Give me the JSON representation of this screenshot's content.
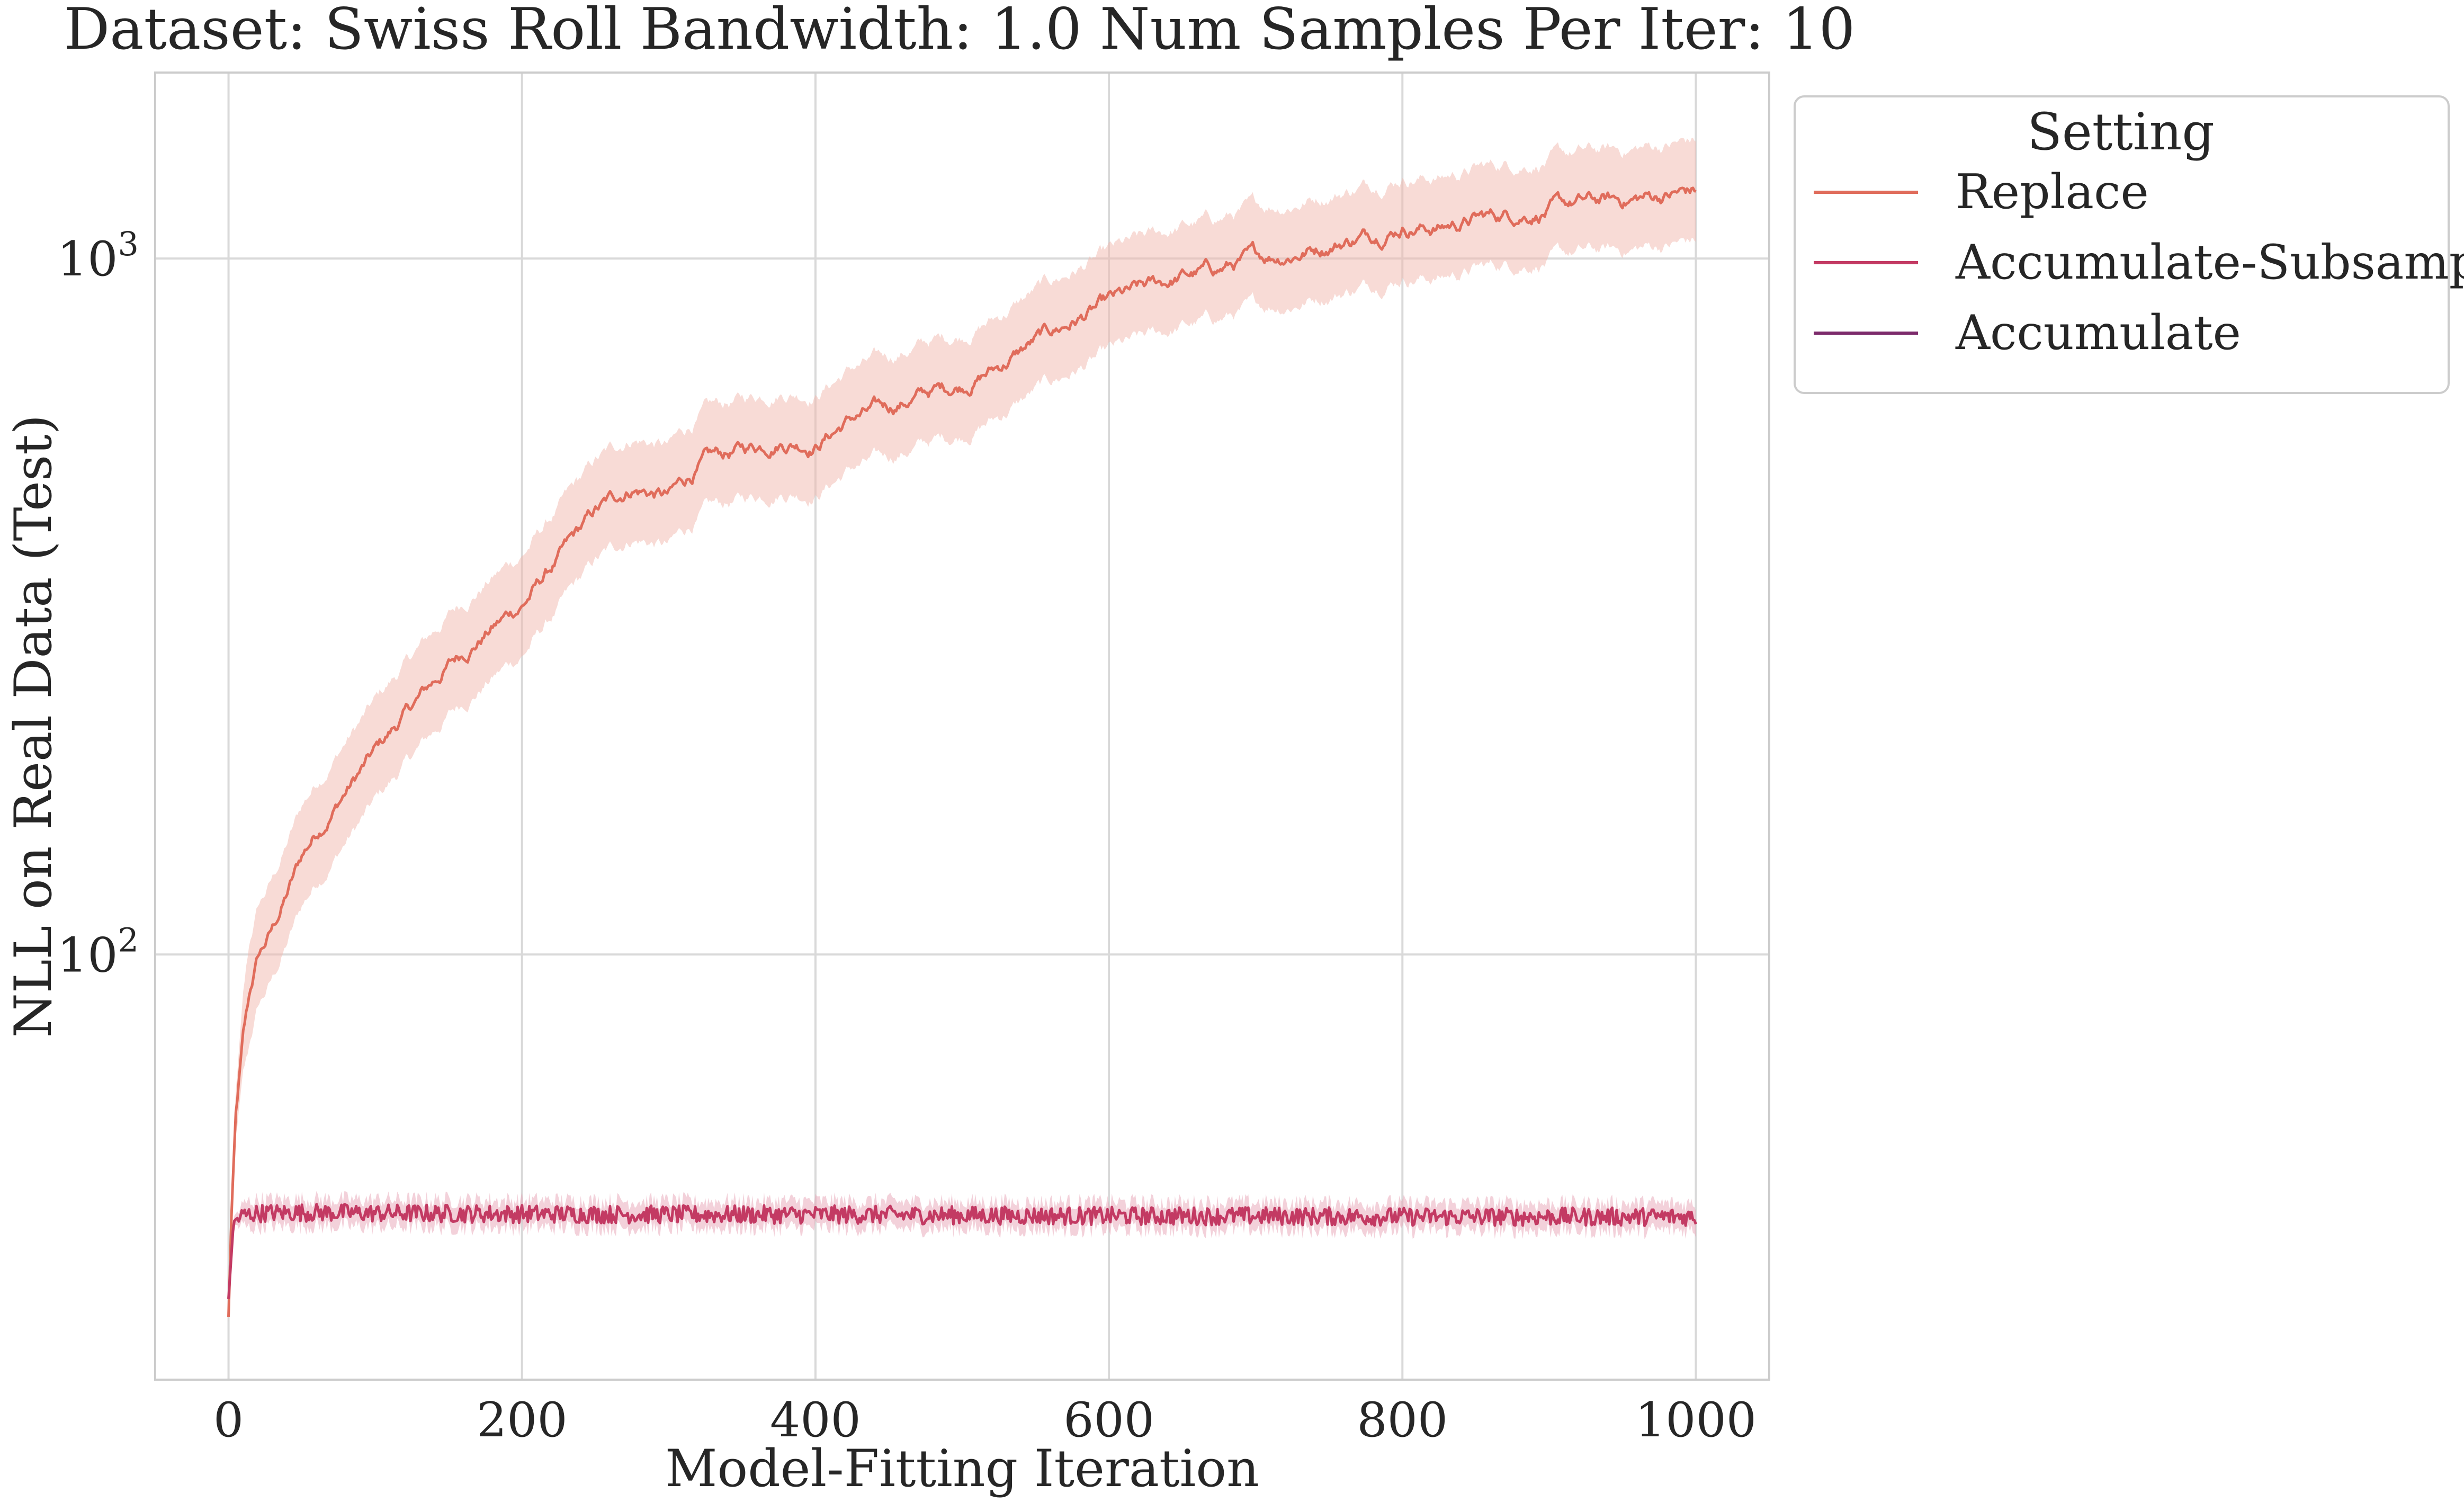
{
  "chart_data": {
    "type": "line",
    "title": "Dataset: Swiss Roll Bandwidth: 1.0 Num Samples Per Iter: 10",
    "xlabel": "Model-Fitting Iteration",
    "ylabel": "NLL on Real Data (Test)",
    "xlim": [
      -50,
      1050
    ],
    "ylim": [
      24.5,
      1850
    ],
    "yscale": "log",
    "grid": true,
    "legend": {
      "title": "Setting",
      "placement": "outside-top-right"
    },
    "x_ticks": [
      0,
      200,
      400,
      600,
      800,
      1000
    ],
    "x_tick_labels": [
      "0",
      "200",
      "400",
      "600",
      "800",
      "1000"
    ],
    "y_ticks": [
      100,
      1000
    ],
    "y_tick_labels": [
      {
        "base": "10",
        "exp": "2"
      },
      {
        "base": "10",
        "exp": "3"
      }
    ],
    "series": [
      {
        "name": "Replace",
        "color": "#e06c5b",
        "band_color": "#f2b8ad",
        "band_ratio": 1.18,
        "x": [
          0,
          2,
          5,
          10,
          15,
          20,
          30,
          40,
          50,
          60,
          80,
          100,
          120,
          150,
          175,
          200,
          225,
          250,
          275,
          300,
          325,
          350,
          375,
          400,
          425,
          450,
          475,
          500,
          525,
          550,
          575,
          600,
          625,
          650,
          675,
          700,
          725,
          750,
          775,
          800,
          825,
          850,
          875,
          900,
          925,
          950,
          975,
          1000
        ],
        "values": [
          30,
          42,
          58,
          75,
          88,
          98,
          108,
          122,
          138,
          150,
          172,
          195,
          220,
          260,
          290,
          318,
          370,
          430,
          470,
          455,
          510,
          530,
          550,
          545,
          590,
          610,
          640,
          660,
          700,
          760,
          810,
          860,
          900,
          940,
          965,
          1000,
          1020,
          1050,
          1080,
          1120,
          1110,
          1140,
          1160,
          1180,
          1200,
          1210,
          1230,
          1250
        ]
      },
      {
        "name": "Accumulate-Subsample",
        "color": "#c33a63",
        "band_color": "#e7a3b6",
        "band_ratio": 1.045,
        "x": [
          0,
          3,
          5,
          10,
          20,
          50,
          100,
          200,
          300,
          400,
          500,
          600,
          700,
          800,
          900,
          1000
        ],
        "values": [
          32,
          40,
          41.5,
          42.2,
          42.5,
          42.6,
          42.5,
          42.4,
          42.3,
          42.3,
          42.2,
          42.1,
          42.1,
          42.0,
          42.0,
          42.0
        ]
      },
      {
        "name": "Accumulate",
        "color": "#7c2a6b",
        "band_color": "#b97fa9",
        "band_ratio": 1.0,
        "x": [],
        "values": []
      }
    ]
  }
}
